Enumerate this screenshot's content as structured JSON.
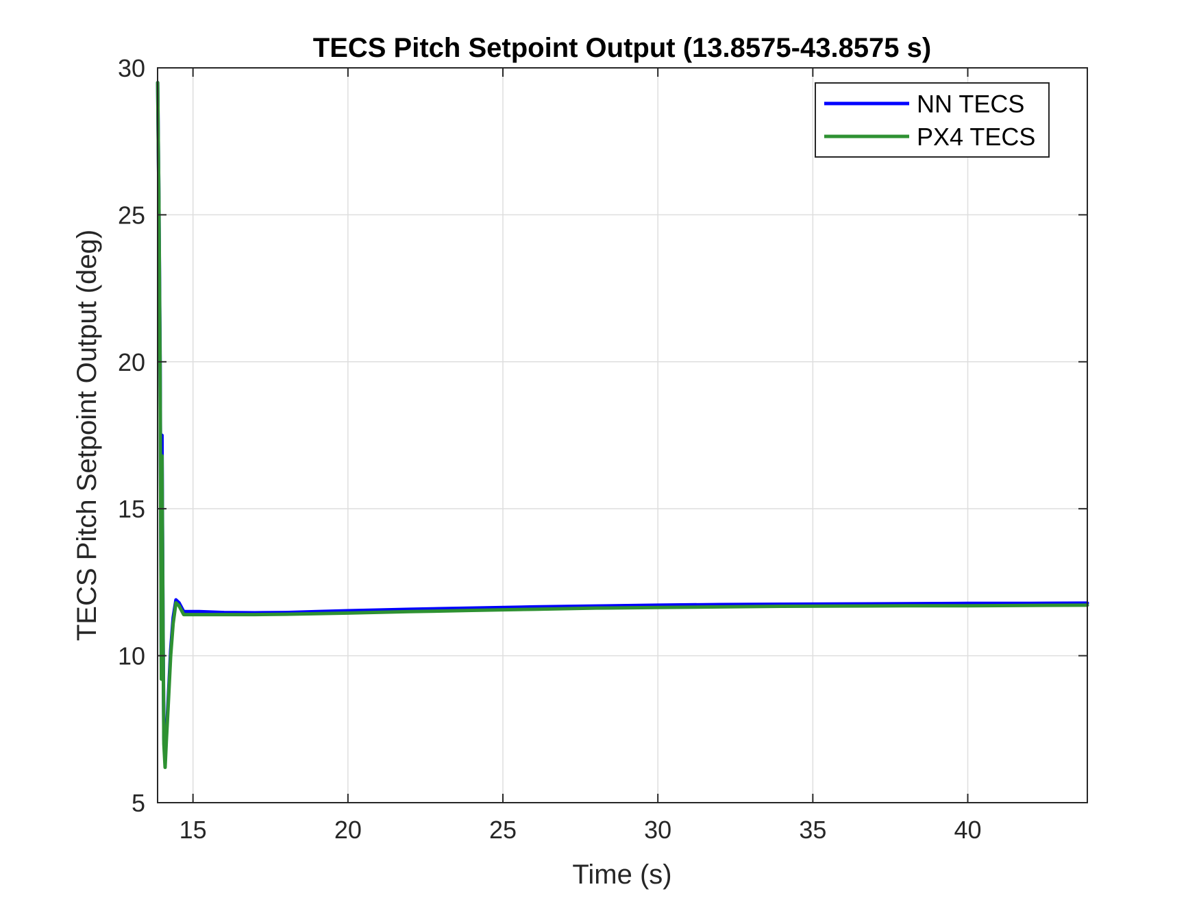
{
  "chart_data": {
    "type": "line",
    "title": "TECS Pitch Setpoint Output (13.8575-43.8575 s)",
    "xlabel": "Time (s)",
    "ylabel": "TECS Pitch Setpoint Output (deg)",
    "xlim": [
      13.8575,
      43.8575
    ],
    "ylim": [
      5,
      30
    ],
    "xticks": [
      15,
      20,
      25,
      30,
      35,
      40
    ],
    "yticks": [
      5,
      10,
      15,
      20,
      25,
      30
    ],
    "grid": true,
    "legend_position": "top-right",
    "series": [
      {
        "name": "NN TECS",
        "color": "#0000ff",
        "x": [
          13.86,
          13.9,
          13.94,
          13.98,
          14.0,
          14.03,
          14.06,
          14.1,
          14.14,
          14.2,
          14.28,
          14.36,
          14.45,
          14.55,
          14.7,
          14.9,
          15.2,
          16,
          17,
          18,
          19,
          20,
          22,
          24,
          26,
          28,
          30,
          32,
          34,
          36,
          38,
          40,
          42,
          43.8575
        ],
        "y": [
          29.5,
          25.5,
          20,
          9.5,
          17.5,
          11.5,
          7.2,
          6.5,
          7.3,
          8.5,
          10.2,
          11.3,
          11.9,
          11.8,
          11.5,
          11.5,
          11.5,
          11.47,
          11.46,
          11.47,
          11.5,
          11.53,
          11.58,
          11.62,
          11.66,
          11.69,
          11.72,
          11.74,
          11.75,
          11.76,
          11.77,
          11.78,
          11.78,
          11.79
        ]
      },
      {
        "name": "PX4 TECS",
        "color": "#2e9132",
        "x": [
          13.86,
          13.9,
          13.94,
          13.98,
          14.0,
          14.03,
          14.06,
          14.1,
          14.14,
          14.2,
          14.28,
          14.36,
          14.45,
          14.55,
          14.7,
          14.9,
          15.2,
          16,
          17,
          18,
          19,
          20,
          22,
          24,
          26,
          28,
          30,
          32,
          34,
          36,
          38,
          40,
          42,
          43.8575
        ],
        "y": [
          29.5,
          25.5,
          19.5,
          9.2,
          16.8,
          11.2,
          7.0,
          6.2,
          7.1,
          8.3,
          10.0,
          11.1,
          11.8,
          11.7,
          11.4,
          11.4,
          11.4,
          11.4,
          11.4,
          11.41,
          11.43,
          11.45,
          11.5,
          11.54,
          11.58,
          11.62,
          11.64,
          11.66,
          11.68,
          11.69,
          11.7,
          11.7,
          11.71,
          11.72
        ]
      }
    ]
  }
}
